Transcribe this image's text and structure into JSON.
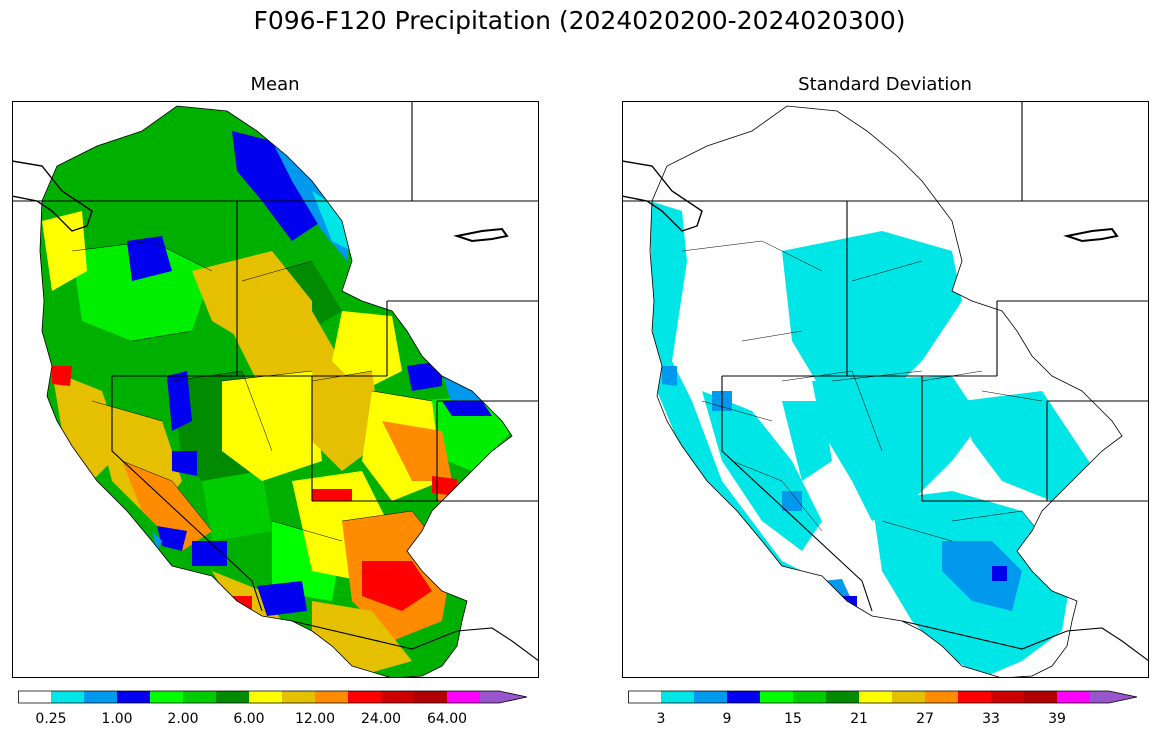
{
  "figure": {
    "title": "F096-F120 Precipitation (2024020200-2024020300)"
  },
  "panels": [
    {
      "title": "Mean",
      "colorbar": {
        "colors": [
          "#ffffff",
          "#00e5e5",
          "#0099ee",
          "#0000ee",
          "#00ff00",
          "#00cc00",
          "#008b00",
          "#ffff00",
          "#e5c000",
          "#ff8c00",
          "#ff0000",
          "#cc0000",
          "#b20000",
          "#ff00ff",
          "#9955cc"
        ],
        "tick_labels": [
          "0.25",
          "1.00",
          "2.00",
          "6.00",
          "12.00",
          "24.00",
          "64.00"
        ],
        "tick_after_bin": [
          1,
          3,
          5,
          7,
          9,
          11,
          13
        ]
      }
    },
    {
      "title": "Standard Deviation",
      "colorbar": {
        "colors": [
          "#ffffff",
          "#00e5e5",
          "#0099ee",
          "#0000ee",
          "#00ff00",
          "#00cc00",
          "#008b00",
          "#ffff00",
          "#e5c000",
          "#ff8c00",
          "#ff0000",
          "#cc0000",
          "#b20000",
          "#ff00ff",
          "#9955cc"
        ],
        "tick_labels": [
          "3",
          "9",
          "15",
          "21",
          "27",
          "33",
          "39"
        ],
        "tick_after_bin": [
          1,
          3,
          5,
          7,
          9,
          11,
          13
        ]
      }
    }
  ]
}
